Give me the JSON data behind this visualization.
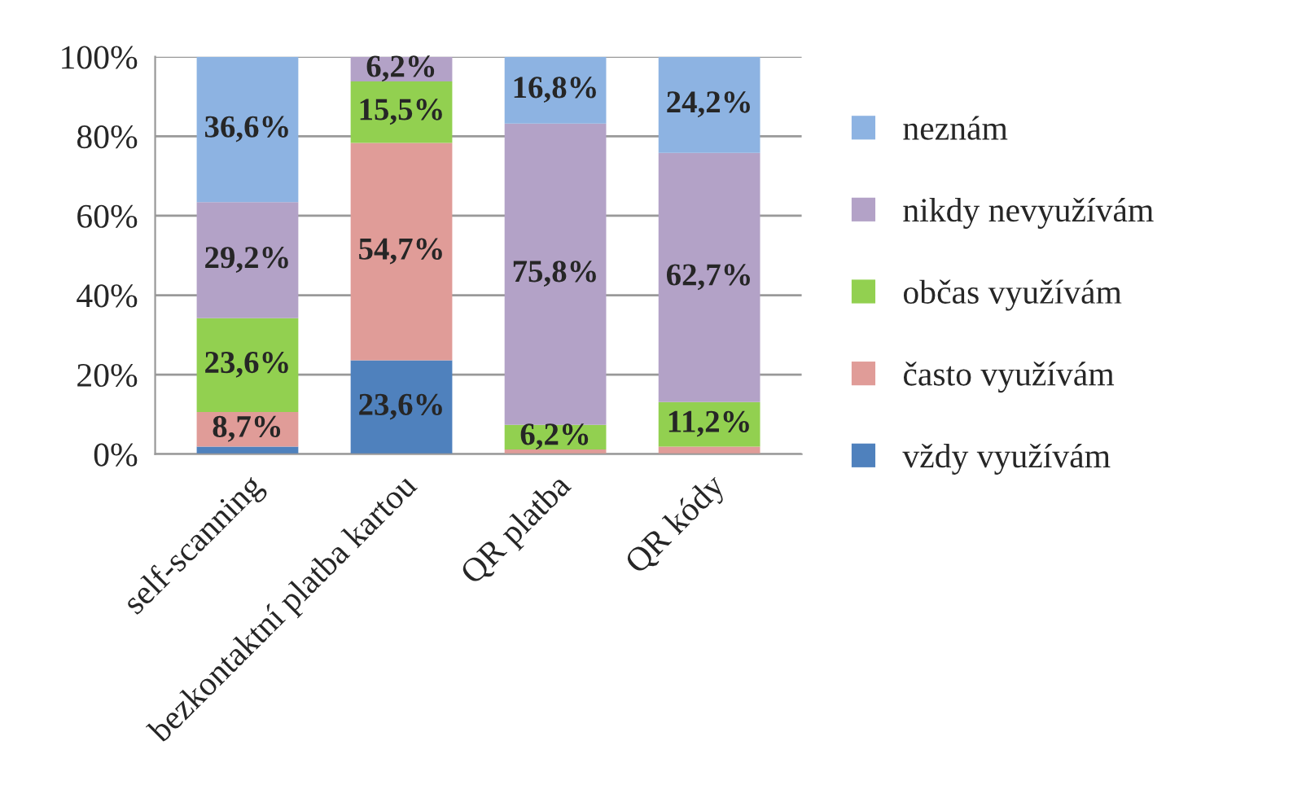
{
  "chart_data": {
    "type": "bar",
    "stacked": true,
    "categories": [
      "self-scanning",
      "bezkontaktní platba kartou",
      "QR platba",
      "QR kódy"
    ],
    "series": [
      {
        "name": "vždy využívám",
        "color": "#4f81bd",
        "values": [
          1.9,
          23.6,
          0,
          0
        ],
        "value_labels": [
          null,
          "23,6%",
          null,
          null
        ]
      },
      {
        "name": "často využívám",
        "color": "#e09c98",
        "values": [
          8.7,
          54.7,
          1.2,
          1.9
        ],
        "value_labels": [
          "8,7%",
          "54,7%",
          null,
          null
        ]
      },
      {
        "name": "občas využívám",
        "color": "#92d050",
        "values": [
          23.6,
          15.5,
          6.2,
          11.2
        ],
        "value_labels": [
          "23,6%",
          "15,5%",
          "6,2%",
          "11,2%"
        ]
      },
      {
        "name": "nikdy nevyužívám",
        "color": "#b3a2c7",
        "values": [
          29.2,
          6.2,
          75.8,
          62.7
        ],
        "value_labels": [
          "29,2%",
          "6,2%",
          "75,8%",
          "62,7%"
        ]
      },
      {
        "name": "neznám",
        "color": "#8db3e2",
        "values": [
          36.6,
          0,
          16.8,
          24.2
        ],
        "value_labels": [
          "36,6%",
          null,
          "16,8%",
          "24,2%"
        ]
      }
    ],
    "ylim": [
      0,
      100
    ],
    "yticks": [
      {
        "value": 0,
        "label": "0%"
      },
      {
        "value": 20,
        "label": "20%"
      },
      {
        "value": 40,
        "label": "40%"
      },
      {
        "value": 60,
        "label": "60%"
      },
      {
        "value": 80,
        "label": "80%"
      },
      {
        "value": 100,
        "label": "100%"
      }
    ],
    "grid": "y",
    "legend": "right"
  }
}
